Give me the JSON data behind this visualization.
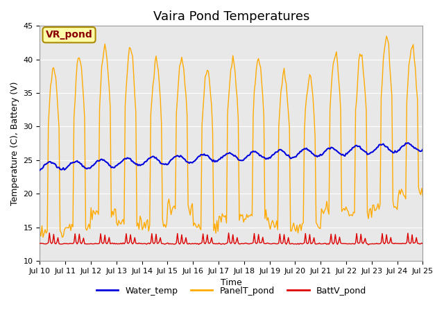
{
  "title": "Vaira Pond Temperatures",
  "xlabel": "Time",
  "ylabel": "Temperature (C), Battery (V)",
  "ylim": [
    10,
    45
  ],
  "xlim_days": [
    0,
    15
  ],
  "x_tick_labels": [
    "Jul 10",
    "Jul 11",
    "Jul 12",
    "Jul 13",
    "Jul 14",
    "Jul 15",
    "Jul 16",
    "Jul 17",
    "Jul 18",
    "Jul 19",
    "Jul 20",
    "Jul 21",
    "Jul 22",
    "Jul 23",
    "Jul 24",
    "Jul 25"
  ],
  "site_label": "VR_pond",
  "legend_labels": [
    "Water_temp",
    "PanelT_pond",
    "BattV_pond"
  ],
  "water_color": "#0000dd",
  "panel_color": "#ffaa00",
  "batt_color": "#dd0000",
  "bg_color": "#e8e8e8",
  "grid_color": "#ffffff",
  "title_fontsize": 13,
  "axis_fontsize": 9,
  "tick_fontsize": 8,
  "legend_fontsize": 9
}
